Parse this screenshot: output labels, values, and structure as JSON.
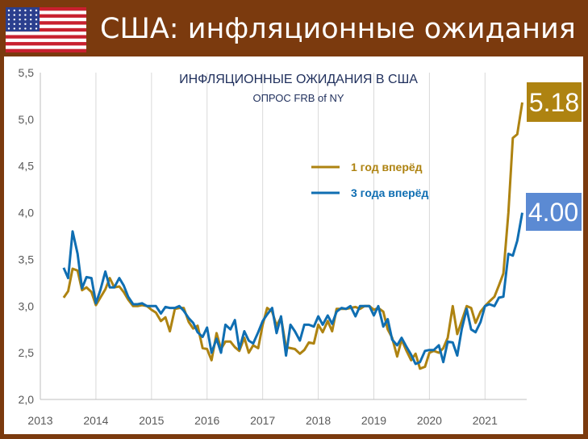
{
  "header": {
    "title": "США: инфляционные ожидания"
  },
  "colors": {
    "one_year": "#ae8311",
    "three_year": "#0f6eb2",
    "badge_one_year": "#ae8311",
    "badge_three_year": "#5b8ad3",
    "header_bg": "#7b3a0e"
  },
  "chart_data": {
    "type": "line",
    "title": "ИНФЛЯЦИОННЫЕ ОЖИДАНИЯ В США",
    "subtitle": "ОПРОС FRB of NY",
    "xlabel": "",
    "ylabel": "",
    "xlim": [
      2013,
      2021.75
    ],
    "ylim": [
      2.0,
      5.5
    ],
    "x_ticks": [
      "2013",
      "2014",
      "2015",
      "2016",
      "2017",
      "2018",
      "2019",
      "2020",
      "2021"
    ],
    "y_ticks": [
      "2,0",
      "2,5",
      "3,0",
      "3,5",
      "4,0",
      "4,5",
      "5,0",
      "5,5"
    ],
    "grid": "vertical",
    "legend_position": "center-right",
    "badges": {
      "one_year": "5.18",
      "three_year": "4.00"
    },
    "series": [
      {
        "name": "1 год вперёд",
        "color": "#ae8311",
        "points": [
          [
            2013.42,
            3.09
          ],
          [
            2013.5,
            3.16
          ],
          [
            2013.58,
            3.4
          ],
          [
            2013.67,
            3.38
          ],
          [
            2013.75,
            3.17
          ],
          [
            2013.83,
            3.2
          ],
          [
            2013.92,
            3.15
          ],
          [
            2014.0,
            3.01
          ],
          [
            2014.08,
            3.09
          ],
          [
            2014.17,
            3.18
          ],
          [
            2014.25,
            3.3
          ],
          [
            2014.33,
            3.2
          ],
          [
            2014.42,
            3.21
          ],
          [
            2014.5,
            3.15
          ],
          [
            2014.58,
            3.07
          ],
          [
            2014.67,
            3.0
          ],
          [
            2014.75,
            3.0
          ],
          [
            2014.83,
            3.01
          ],
          [
            2014.92,
            3.0
          ],
          [
            2015.0,
            2.96
          ],
          [
            2015.08,
            2.93
          ],
          [
            2015.17,
            2.84
          ],
          [
            2015.25,
            2.88
          ],
          [
            2015.33,
            2.73
          ],
          [
            2015.42,
            2.97
          ],
          [
            2015.5,
            2.98
          ],
          [
            2015.58,
            2.98
          ],
          [
            2015.67,
            2.83
          ],
          [
            2015.75,
            2.76
          ],
          [
            2015.83,
            2.79
          ],
          [
            2015.92,
            2.55
          ],
          [
            2016.0,
            2.54
          ],
          [
            2016.08,
            2.42
          ],
          [
            2016.17,
            2.71
          ],
          [
            2016.25,
            2.54
          ],
          [
            2016.33,
            2.62
          ],
          [
            2016.42,
            2.62
          ],
          [
            2016.5,
            2.56
          ],
          [
            2016.58,
            2.52
          ],
          [
            2016.67,
            2.66
          ],
          [
            2016.75,
            2.5
          ],
          [
            2016.83,
            2.58
          ],
          [
            2016.92,
            2.55
          ],
          [
            2017.0,
            2.8
          ],
          [
            2017.08,
            2.98
          ],
          [
            2017.17,
            2.94
          ],
          [
            2017.25,
            2.79
          ],
          [
            2017.33,
            2.88
          ],
          [
            2017.42,
            2.56
          ],
          [
            2017.5,
            2.55
          ],
          [
            2017.58,
            2.54
          ],
          [
            2017.67,
            2.49
          ],
          [
            2017.75,
            2.53
          ],
          [
            2017.83,
            2.61
          ],
          [
            2017.92,
            2.6
          ],
          [
            2018.0,
            2.8
          ],
          [
            2018.08,
            2.72
          ],
          [
            2018.17,
            2.84
          ],
          [
            2018.25,
            2.73
          ],
          [
            2018.33,
            2.97
          ],
          [
            2018.42,
            2.97
          ],
          [
            2018.5,
            2.97
          ],
          [
            2018.58,
            2.98
          ],
          [
            2018.67,
            2.99
          ],
          [
            2018.75,
            2.97
          ],
          [
            2018.83,
            3.0
          ],
          [
            2018.92,
            3.0
          ],
          [
            2019.0,
            2.96
          ],
          [
            2019.08,
            2.98
          ],
          [
            2019.17,
            2.94
          ],
          [
            2019.25,
            2.75
          ],
          [
            2019.33,
            2.66
          ],
          [
            2019.42,
            2.46
          ],
          [
            2019.5,
            2.64
          ],
          [
            2019.58,
            2.53
          ],
          [
            2019.67,
            2.42
          ],
          [
            2019.75,
            2.49
          ],
          [
            2019.83,
            2.33
          ],
          [
            2019.92,
            2.35
          ],
          [
            2020.0,
            2.5
          ],
          [
            2020.08,
            2.52
          ],
          [
            2020.17,
            2.5
          ],
          [
            2020.25,
            2.55
          ],
          [
            2020.33,
            2.66
          ],
          [
            2020.42,
            3.0
          ],
          [
            2020.5,
            2.7
          ],
          [
            2020.58,
            2.84
          ],
          [
            2020.67,
            3.0
          ],
          [
            2020.75,
            2.98
          ],
          [
            2020.83,
            2.82
          ],
          [
            2020.92,
            2.94
          ],
          [
            2021.0,
            3.0
          ],
          [
            2021.08,
            3.05
          ],
          [
            2021.17,
            3.1
          ],
          [
            2021.25,
            3.22
          ],
          [
            2021.33,
            3.35
          ],
          [
            2021.42,
            4.0
          ],
          [
            2021.5,
            4.8
          ],
          [
            2021.58,
            4.84
          ],
          [
            2021.67,
            5.18
          ]
        ]
      },
      {
        "name": "3 года вперёд",
        "color": "#0f6eb2",
        "points": [
          [
            2013.42,
            3.41
          ],
          [
            2013.5,
            3.3
          ],
          [
            2013.58,
            3.8
          ],
          [
            2013.67,
            3.56
          ],
          [
            2013.75,
            3.19
          ],
          [
            2013.83,
            3.31
          ],
          [
            2013.92,
            3.3
          ],
          [
            2014.0,
            3.03
          ],
          [
            2014.08,
            3.17
          ],
          [
            2014.17,
            3.37
          ],
          [
            2014.25,
            3.2
          ],
          [
            2014.33,
            3.2
          ],
          [
            2014.42,
            3.3
          ],
          [
            2014.5,
            3.22
          ],
          [
            2014.58,
            3.1
          ],
          [
            2014.67,
            3.02
          ],
          [
            2014.75,
            3.02
          ],
          [
            2014.83,
            3.03
          ],
          [
            2014.92,
            3.0
          ],
          [
            2015.0,
            3.0
          ],
          [
            2015.08,
            3.0
          ],
          [
            2015.17,
            2.92
          ],
          [
            2015.25,
            2.99
          ],
          [
            2015.33,
            2.98
          ],
          [
            2015.42,
            2.98
          ],
          [
            2015.5,
            3.0
          ],
          [
            2015.58,
            2.95
          ],
          [
            2015.67,
            2.87
          ],
          [
            2015.75,
            2.82
          ],
          [
            2015.83,
            2.72
          ],
          [
            2015.92,
            2.67
          ],
          [
            2016.0,
            2.77
          ],
          [
            2016.08,
            2.5
          ],
          [
            2016.17,
            2.65
          ],
          [
            2016.25,
            2.5
          ],
          [
            2016.33,
            2.8
          ],
          [
            2016.42,
            2.75
          ],
          [
            2016.5,
            2.85
          ],
          [
            2016.58,
            2.54
          ],
          [
            2016.67,
            2.73
          ],
          [
            2016.75,
            2.63
          ],
          [
            2016.83,
            2.6
          ],
          [
            2016.92,
            2.72
          ],
          [
            2017.0,
            2.84
          ],
          [
            2017.08,
            2.91
          ],
          [
            2017.17,
            2.98
          ],
          [
            2017.25,
            2.71
          ],
          [
            2017.33,
            2.89
          ],
          [
            2017.42,
            2.47
          ],
          [
            2017.5,
            2.8
          ],
          [
            2017.58,
            2.73
          ],
          [
            2017.67,
            2.63
          ],
          [
            2017.75,
            2.8
          ],
          [
            2017.83,
            2.8
          ],
          [
            2017.92,
            2.78
          ],
          [
            2018.0,
            2.89
          ],
          [
            2018.08,
            2.8
          ],
          [
            2018.17,
            2.9
          ],
          [
            2018.25,
            2.81
          ],
          [
            2018.33,
            2.94
          ],
          [
            2018.42,
            2.98
          ],
          [
            2018.5,
            2.97
          ],
          [
            2018.58,
            3.0
          ],
          [
            2018.67,
            2.89
          ],
          [
            2018.75,
            3.0
          ],
          [
            2018.83,
            3.0
          ],
          [
            2018.92,
            3.0
          ],
          [
            2019.0,
            2.9
          ],
          [
            2019.08,
            3.0
          ],
          [
            2019.17,
            2.78
          ],
          [
            2019.25,
            2.86
          ],
          [
            2019.33,
            2.64
          ],
          [
            2019.42,
            2.58
          ],
          [
            2019.5,
            2.66
          ],
          [
            2019.58,
            2.57
          ],
          [
            2019.67,
            2.48
          ],
          [
            2019.75,
            2.38
          ],
          [
            2019.83,
            2.4
          ],
          [
            2019.92,
            2.52
          ],
          [
            2020.0,
            2.53
          ],
          [
            2020.08,
            2.53
          ],
          [
            2020.17,
            2.58
          ],
          [
            2020.25,
            2.4
          ],
          [
            2020.33,
            2.62
          ],
          [
            2020.42,
            2.61
          ],
          [
            2020.5,
            2.47
          ],
          [
            2020.58,
            2.75
          ],
          [
            2020.67,
            2.97
          ],
          [
            2020.75,
            2.75
          ],
          [
            2020.83,
            2.72
          ],
          [
            2020.92,
            2.83
          ],
          [
            2021.0,
            3.0
          ],
          [
            2021.08,
            3.02
          ],
          [
            2021.17,
            3.0
          ],
          [
            2021.25,
            3.09
          ],
          [
            2021.33,
            3.1
          ],
          [
            2021.42,
            3.56
          ],
          [
            2021.5,
            3.54
          ],
          [
            2021.58,
            3.7
          ],
          [
            2021.67,
            4.0
          ]
        ]
      }
    ]
  }
}
